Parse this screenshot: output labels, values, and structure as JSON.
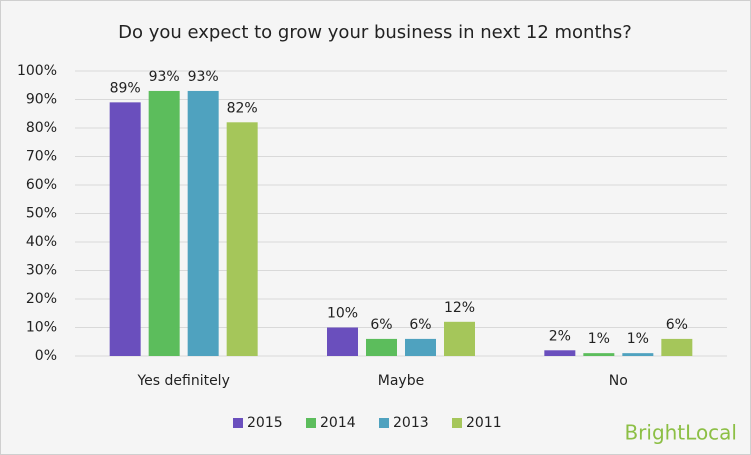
{
  "chart_data": {
    "type": "bar",
    "title": "Do you expect to grow your business in next 12 months?",
    "categories": [
      "Yes definitely",
      "Maybe",
      "No"
    ],
    "series": [
      {
        "name": "2015",
        "color": "#6a4fbd",
        "values": [
          89,
          10,
          2
        ],
        "value_labels": [
          "89%",
          "10%",
          "2%"
        ]
      },
      {
        "name": "2014",
        "color": "#5cbd5c",
        "values": [
          93,
          6,
          1
        ],
        "value_labels": [
          "93%",
          "6%",
          "1%"
        ]
      },
      {
        "name": "2013",
        "color": "#4fa2bf",
        "values": [
          93,
          6,
          1
        ],
        "value_labels": [
          "93%",
          "6%",
          "1%"
        ]
      },
      {
        "name": "2011",
        "color": "#a5c65a",
        "values": [
          82,
          12,
          6
        ],
        "value_labels": [
          "82%",
          "12%",
          "6%"
        ]
      }
    ],
    "ylim": [
      0,
      100
    ],
    "yticks": [
      {
        "value": 0,
        "label": "0%"
      },
      {
        "value": 10,
        "label": "10%"
      },
      {
        "value": 20,
        "label": "20%"
      },
      {
        "value": 30,
        "label": "30%"
      },
      {
        "value": 40,
        "label": "40%"
      },
      {
        "value": 50,
        "label": "50%"
      },
      {
        "value": 60,
        "label": "60%"
      },
      {
        "value": 70,
        "label": "70%"
      },
      {
        "value": 80,
        "label": "80%"
      },
      {
        "value": 90,
        "label": "90%"
      },
      {
        "value": 100,
        "label": "100%"
      }
    ],
    "grid": true,
    "legend": "bottom",
    "brand": "BrightLocal"
  }
}
